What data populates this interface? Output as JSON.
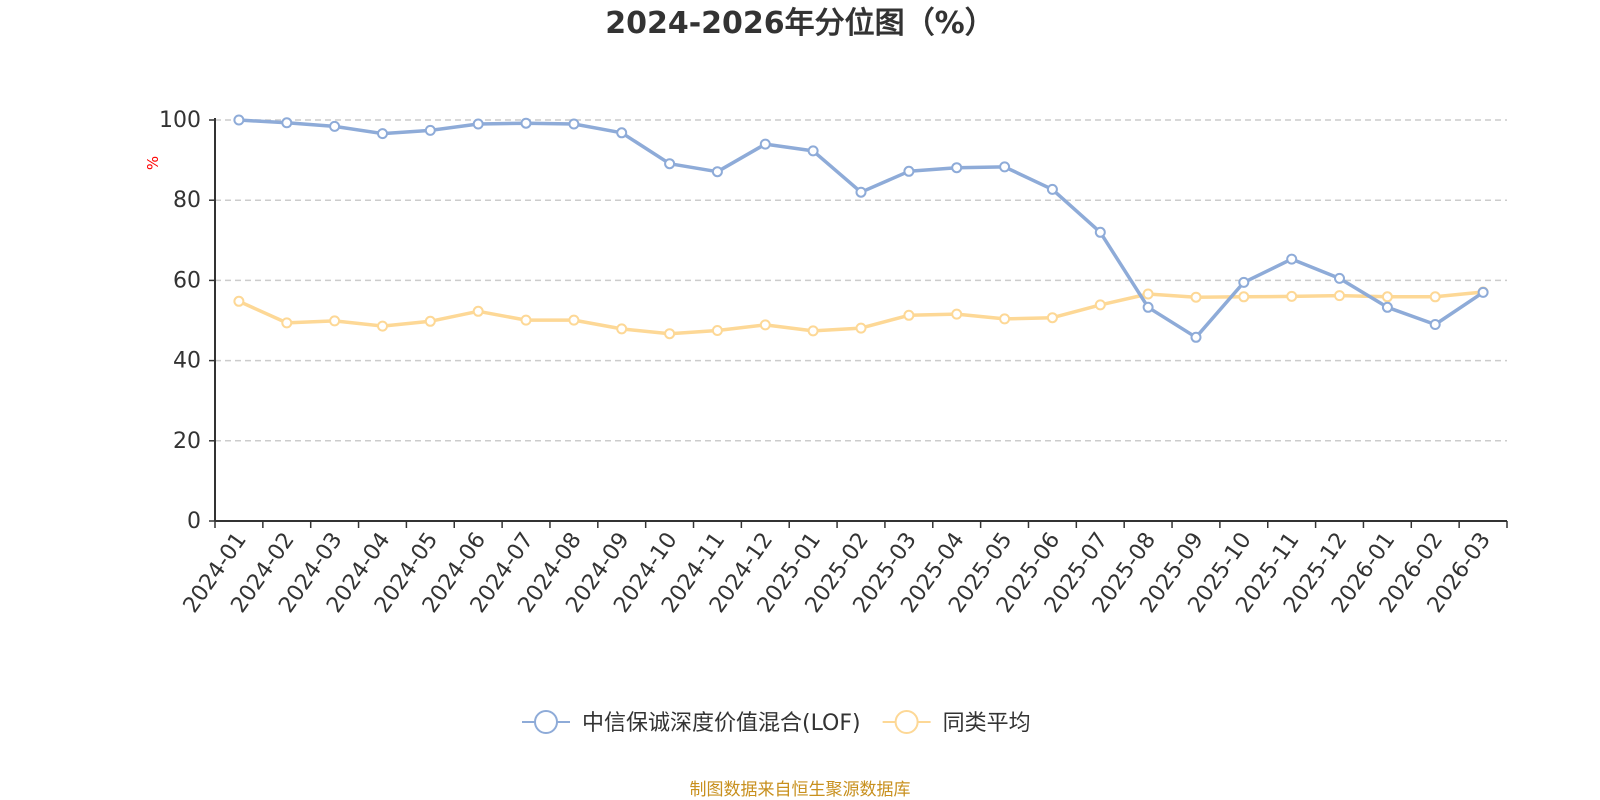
{
  "chart_data": {
    "type": "line",
    "title": "2024-2026年分位图（%）",
    "xlabel": "",
    "ylabel": "%",
    "ylim": [
      0,
      100
    ],
    "yticks": [
      0,
      20,
      40,
      60,
      80,
      100
    ],
    "grid": true,
    "legend_position": "bottom",
    "categories": [
      "2024-01",
      "2024-02",
      "2024-03",
      "2024-04",
      "2024-05",
      "2024-06",
      "2024-07",
      "2024-08",
      "2024-09",
      "2024-10",
      "2024-11",
      "2024-12",
      "2025-01",
      "2025-02",
      "2025-03",
      "2025-04",
      "2025-05",
      "2025-06",
      "2025-07",
      "2025-08",
      "2025-09",
      "2025-10",
      "2025-11",
      "2025-12",
      "2026-01",
      "2026-02",
      "2026-03"
    ],
    "series": [
      {
        "name": "中信保诚深度价值混合(LOF)",
        "color": "#8eabd8",
        "values": [
          100,
          99.3,
          98.4,
          96.6,
          97.4,
          99,
          99.2,
          99,
          96.8,
          89.1,
          87.1,
          94,
          92.3,
          82,
          87.2,
          88.1,
          88.3,
          82.7,
          72,
          53.3,
          45.8,
          59.5,
          65.3,
          60.5,
          53.3,
          49,
          57
        ]
      },
      {
        "name": "同类平均",
        "color": "#fdd896",
        "values": [
          54.8,
          49.4,
          49.9,
          48.6,
          49.8,
          52.3,
          50.1,
          50.1,
          47.9,
          46.7,
          47.5,
          48.9,
          47.4,
          48.1,
          51.3,
          51.6,
          50.4,
          50.7,
          53.9,
          56.6,
          55.8,
          55.9,
          56,
          56.2,
          55.9,
          55.9,
          57.1
        ]
      }
    ]
  },
  "footer": {
    "source_text": "制图数据来自恒生聚源数据库"
  }
}
